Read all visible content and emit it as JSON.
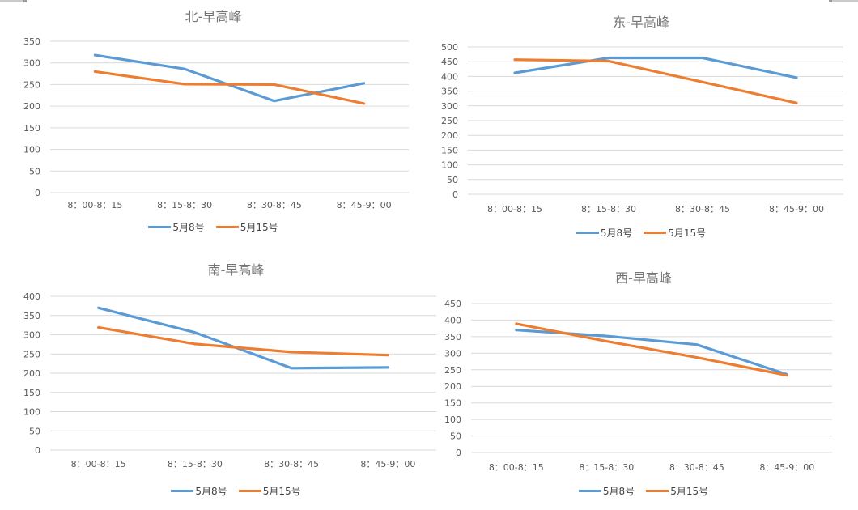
{
  "page": {
    "background": "#ffffff",
    "grid_color": "#d9d9d9",
    "tick_label_color": "#595959",
    "title_color": "#757575",
    "series_colors": {
      "may8": "#5B9BD5",
      "may15": "#ED7D31"
    }
  },
  "chart_data": [
    {
      "id": "north",
      "type": "line",
      "title": "北-早高峰",
      "categories": [
        "8：00-8：15",
        "8：15-8：30",
        "8：30-8：45",
        "8：45-9：00"
      ],
      "series": [
        {
          "name": "5月8号",
          "color": "#5B9BD5",
          "values": [
            318,
            286,
            212,
            253
          ]
        },
        {
          "name": "5月15号",
          "color": "#ED7D31",
          "values": [
            280,
            251,
            250,
            206
          ]
        }
      ],
      "ylim": [
        0,
        350
      ],
      "ytick_step": 50,
      "yticks": [
        0,
        50,
        100,
        150,
        200,
        250,
        300,
        350
      ],
      "grid": true,
      "legend_position": "bottom"
    },
    {
      "id": "east",
      "type": "line",
      "title": "东-早高峰",
      "categories": [
        "8：00-8：15",
        "8：15-8：30",
        "8：30-8：45",
        "8：45-9：00"
      ],
      "series": [
        {
          "name": "5月8号",
          "color": "#5B9BD5",
          "values": [
            412,
            463,
            463,
            396
          ]
        },
        {
          "name": "5月15号",
          "color": "#ED7D31",
          "values": [
            457,
            452,
            381,
            310
          ]
        }
      ],
      "ylim": [
        0,
        500
      ],
      "ytick_step": 50,
      "yticks": [
        0,
        50,
        100,
        150,
        200,
        250,
        300,
        350,
        400,
        450,
        500
      ],
      "grid": true,
      "legend_position": "bottom"
    },
    {
      "id": "south",
      "type": "line",
      "title": "南-早高峰",
      "categories": [
        "8：00-8：15",
        "8：15-8：30",
        "8：30-8：45",
        "8：45-9：00"
      ],
      "series": [
        {
          "name": "5月8号",
          "color": "#5B9BD5",
          "values": [
            370,
            306,
            213,
            215
          ]
        },
        {
          "name": "5月15号",
          "color": "#ED7D31",
          "values": [
            319,
            276,
            255,
            247
          ]
        }
      ],
      "ylim": [
        0,
        400
      ],
      "ytick_step": 50,
      "yticks": [
        0,
        50,
        100,
        150,
        200,
        250,
        300,
        350,
        400
      ],
      "grid": true,
      "legend_position": "bottom"
    },
    {
      "id": "west",
      "type": "line",
      "title": "西-早高峰",
      "categories": [
        "8：00-8：15",
        "8：15-8：30",
        "8：30-8：45",
        "8：45-9：00"
      ],
      "series": [
        {
          "name": "5月8号",
          "color": "#5B9BD5",
          "values": [
            370,
            352,
            326,
            236
          ]
        },
        {
          "name": "5月15号",
          "color": "#ED7D31",
          "values": [
            389,
            336,
            287,
            233
          ]
        }
      ],
      "ylim": [
        0,
        450
      ],
      "ytick_step": 50,
      "yticks": [
        0,
        50,
        100,
        150,
        200,
        250,
        300,
        350,
        400,
        450
      ],
      "grid": true,
      "legend_position": "bottom"
    }
  ]
}
